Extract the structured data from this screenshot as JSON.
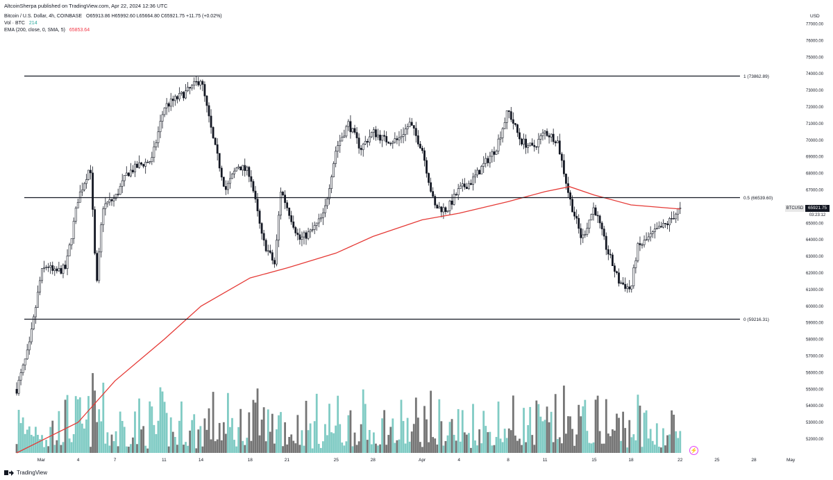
{
  "header": {
    "publisher": "AltcoinSherpa published on TradingView.com, Apr 22, 2024 12:36 UTC",
    "symbol_line": "Bitcoin / U.S. Dollar, 4h, COINBASE",
    "ohlc": "O65913.86  H65992.60  L65664.80  C65921.75  +11.75 (+0.02%)",
    "vol_label": "Vol · BTC",
    "vol_value": "214",
    "ema_label": "EMA (200, close, 0, SMA, 5)",
    "ema_value": "65853.64"
  },
  "price_axis": {
    "currency": "USD",
    "ticks": [
      "77000.00",
      "76000.00",
      "75000.00",
      "74000.00",
      "73000.00",
      "72000.00",
      "71000.00",
      "70000.00",
      "69000.00",
      "68000.00",
      "67000.00",
      "66000.00",
      "65000.00",
      "64000.00",
      "63000.00",
      "62000.00",
      "61000.00",
      "60000.00",
      "59000.00",
      "58000.00",
      "57000.00",
      "56000.00",
      "55000.00",
      "54000.00",
      "53000.00",
      "52000.00"
    ]
  },
  "time_axis": {
    "ticks": [
      "Mar",
      "4",
      "7",
      "11",
      "14",
      "18",
      "21",
      "25",
      "28",
      "Apr",
      "4",
      "8",
      "11",
      "15",
      "18",
      "22",
      "25",
      "28",
      "May"
    ]
  },
  "last_price": {
    "symbol": "BTCUSD",
    "value": "65921.75",
    "countdown": "03:23:12"
  },
  "footer": {
    "brand": "TradingView"
  },
  "colors": {
    "up": "#089981",
    "down": "#f23645",
    "ema": "#e53935",
    "volume_up": "#80cbc4",
    "volume_down": "#757575",
    "candle": "#131722"
  },
  "chart_data": {
    "type": "candlestick",
    "timeframe": "4h",
    "ylim": [
      51000,
      77500
    ],
    "fib_levels": [
      {
        "label": "1 (73862.89)",
        "value": 73862.89
      },
      {
        "label": "0.5 (66539.60)",
        "value": 66539.6
      },
      {
        "label": "0 (59216.31)",
        "value": 59216.31
      }
    ],
    "price_path": [
      [
        "Feb 27",
        55000
      ],
      [
        "Feb 28",
        57500
      ],
      [
        "Feb 29",
        62000
      ],
      [
        "Mar 1",
        62500
      ],
      [
        "Mar 2",
        62000
      ],
      [
        "Mar 3",
        62300
      ],
      [
        "Mar 4",
        66500
      ],
      [
        "Mar 5",
        68500
      ],
      [
        "Mar 5",
        61000
      ],
      [
        "Mar 6",
        66000
      ],
      [
        "Mar 7",
        66500
      ],
      [
        "Mar 8",
        68000
      ],
      [
        "Mar 9",
        68500
      ],
      [
        "Mar 10",
        68800
      ],
      [
        "Mar 11",
        72000
      ],
      [
        "Mar 12",
        72500
      ],
      [
        "Mar 13",
        73000
      ],
      [
        "Mar 14",
        73700
      ],
      [
        "Mar 15",
        70000
      ],
      [
        "Mar 16",
        67000
      ],
      [
        "Mar 17",
        68500
      ],
      [
        "Mar 18",
        68000
      ],
      [
        "Mar 19",
        64000
      ],
      [
        "Mar 20",
        62500
      ],
      [
        "Mar 20",
        67000
      ],
      [
        "Mar 21",
        66000
      ],
      [
        "Mar 22",
        64000
      ],
      [
        "Mar 23",
        64500
      ],
      [
        "Mar 24",
        65500
      ],
      [
        "Mar 25",
        69500
      ],
      [
        "Mar 26",
        71000
      ],
      [
        "Mar 27",
        69500
      ],
      [
        "Mar 28",
        70500
      ],
      [
        "Mar 29",
        70000
      ],
      [
        "Mar 30",
        70000
      ],
      [
        "Mar 31",
        71000
      ],
      [
        "Apr 1",
        69500
      ],
      [
        "Apr 2",
        66000
      ],
      [
        "Apr 3",
        65800
      ],
      [
        "Apr 4",
        67000
      ],
      [
        "Apr 5",
        67500
      ],
      [
        "Apr 6",
        68500
      ],
      [
        "Apr 7",
        69500
      ],
      [
        "Apr 8",
        71800
      ],
      [
        "Apr 9",
        70000
      ],
      [
        "Apr 10",
        69500
      ],
      [
        "Apr 11",
        70500
      ],
      [
        "Apr 12",
        70000
      ],
      [
        "Apr 13",
        66500
      ],
      [
        "Apr 14",
        64000
      ],
      [
        "Apr 15",
        66000
      ],
      [
        "Apr 16",
        63500
      ],
      [
        "Apr 17",
        61500
      ],
      [
        "Apr 18",
        61000
      ],
      [
        "Apr 18",
        63500
      ],
      [
        "Apr 19",
        63800
      ],
      [
        "Apr 20",
        64500
      ],
      [
        "Apr 21",
        65000
      ],
      [
        "Apr 22",
        65921.75
      ]
    ],
    "ema_path": [
      [
        "Feb 27",
        51000
      ],
      [
        "Mar 4",
        53000
      ],
      [
        "Mar 7",
        55500
      ],
      [
        "Mar 11",
        58000
      ],
      [
        "Mar 14",
        60000
      ],
      [
        "Mar 18",
        61700
      ],
      [
        "Mar 21",
        62300
      ],
      [
        "Mar 25",
        63200
      ],
      [
        "Mar 28",
        64200
      ],
      [
        "Apr 1",
        65200
      ],
      [
        "Apr 4",
        65600
      ],
      [
        "Apr 8",
        66300
      ],
      [
        "Apr 11",
        66900
      ],
      [
        "Apr 13",
        67200
      ],
      [
        "Apr 15",
        66700
      ],
      [
        "Apr 18",
        66100
      ],
      [
        "Apr 22",
        65853.64
      ]
    ]
  }
}
